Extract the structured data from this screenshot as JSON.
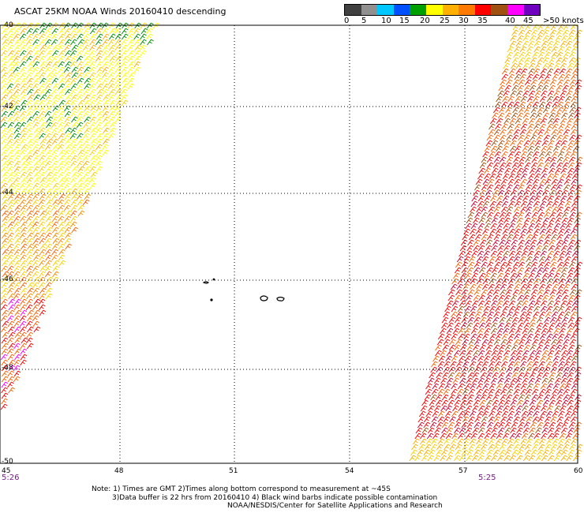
{
  "title": "ASCAT 25KM NOAA Winds 20160410 descending",
  "legend": {
    "colors": [
      "#404040",
      "#909090",
      "#00c8ff",
      "#0050ff",
      "#00a000",
      "#ffff00",
      "#ffb000",
      "#ff7a00",
      "#ff0000",
      "#a05010",
      "#ff00ff",
      "#7000c0"
    ],
    "labels": [
      "0",
      "5",
      "10",
      "15",
      "20",
      "25",
      "30",
      "35",
      "40",
      "45",
      ">50 knots"
    ]
  },
  "axes": {
    "lat_labels": [
      "-40",
      "-42",
      "-44",
      "-46",
      "-48",
      "-50"
    ],
    "lon_labels": [
      "45",
      "48",
      "51",
      "54",
      "57",
      "60"
    ]
  },
  "times": {
    "left": "5:26",
    "right": "5:25"
  },
  "notes": {
    "line1": "Note: 1) Times are GMT 2)Times along bottom correspond to measurement at ~45S",
    "line2": "3)Data buffer is 22 hrs from 20160410 4) Black wind barbs indicate possible contamination",
    "line3": "NOAA/NESDIS/Center for Satellite Applications and Research"
  },
  "colors": {
    "barb_palette": [
      "#ffff00",
      "#ffd000",
      "#ffb000",
      "#ff8a00",
      "#ff6000",
      "#ff0000",
      "#d00030",
      "#a05010",
      "#009000",
      "#ff00ff"
    ],
    "time_color": "#7a1a8e",
    "grid": "#000000"
  }
}
